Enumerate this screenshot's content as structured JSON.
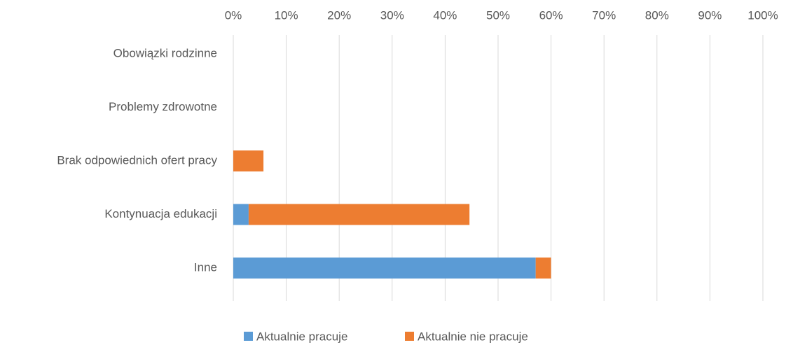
{
  "chart_data": {
    "type": "stacked-bar-horizontal",
    "categories": [
      "Obowiązki rodzinne",
      "Problemy zdrowotne",
      "Brak odpowiednich ofert pracy",
      "Kontynuacja edukacji",
      "Inne"
    ],
    "series": [
      {
        "name": "Aktualnie pracuje",
        "color": "#5b9bd5",
        "values": [
          0,
          0,
          0,
          2.9,
          57.1
        ]
      },
      {
        "name": "Aktualnie nie pracuje",
        "color": "#ed7d31",
        "values": [
          0,
          0,
          5.7,
          41.7,
          2.9
        ]
      }
    ],
    "xlim": [
      0,
      100
    ],
    "xticks": [
      {
        "value": 0,
        "label": "0%"
      },
      {
        "value": 10,
        "label": "10%"
      },
      {
        "value": 20,
        "label": "20%"
      },
      {
        "value": 30,
        "label": "30%"
      },
      {
        "value": 40,
        "label": "40%"
      },
      {
        "value": 50,
        "label": "50%"
      },
      {
        "value": 60,
        "label": "60%"
      },
      {
        "value": 70,
        "label": "70%"
      },
      {
        "value": 80,
        "label": "80%"
      },
      {
        "value": 90,
        "label": "90%"
      },
      {
        "value": 100,
        "label": "100%"
      }
    ],
    "grid": true,
    "legend": "bottom"
  }
}
